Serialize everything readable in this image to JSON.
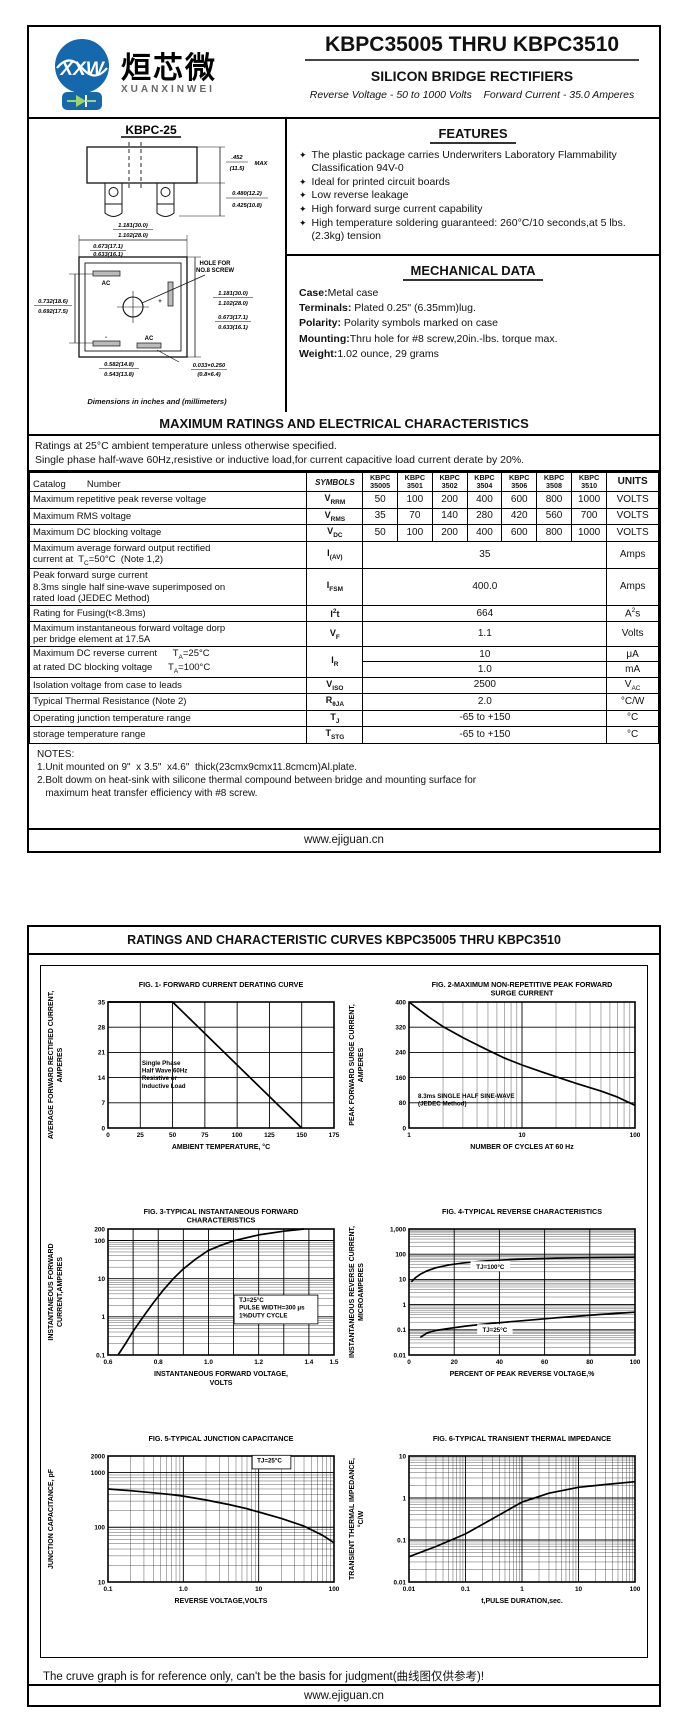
{
  "page1": {
    "brand": {
      "logo_text": "XXW",
      "cn": "烜芯微",
      "en": "XUANXINWEI"
    },
    "title": "KBPC35005 THRU KBPC3510",
    "subtitle": "SILICON BRIDGE RECTIFIERS",
    "tagline": "Reverse Voltage - 50 to 1000 Volts    Forward Current - 35.0 Amperes",
    "package": {
      "name": "KBPC-25",
      "caption": "Dimensions in inches and (millimeters)",
      "hole_note_1": "HOLE FOR",
      "hole_note_2": "NO.8 SCREW",
      "terminals": {
        "ac1": "AC",
        "plus": "+",
        "minus": "-",
        "ac2": "AC"
      },
      "dims": {
        "side_h_top": ".452",
        "side_h_bot": "(11.5)",
        "side_h_suffix": "MAX",
        "lead_top": "0.480(12.2)",
        "lead_bot": "0.425(10.8)",
        "width_top": "1.181(30.0)",
        "width_bot": "1.102(28.0)",
        "inner_top": "0.673(17.1)",
        "inner_bot": "0.633(16.1)",
        "left_top": "0.732(18.6)",
        "left_bot": "0.692(17.5)",
        "right1_top": "1.181(30.0)",
        "right1_bot": "1.102(28.0)",
        "right2_top": "0.673(17.1)",
        "right2_bot": "0.633(16.1)",
        "bottom_top": "0.582(14.8)",
        "bottom_bot": "0.543(13.8)",
        "slot_top": "0.033×0.250",
        "slot_bot": "(0.8×6.4)"
      }
    },
    "features": {
      "heading": "FEATURES",
      "items": [
        "The plastic package carries Underwriters Laboratory Flammability Classification 94V-0",
        "Ideal for printed circuit boards",
        "Low reverse leakage",
        "High forward surge current capability",
        "High temperature soldering guaranteed: 260°C/10 seconds,at 5 lbs. (2.3kg) tension"
      ]
    },
    "mechanical": {
      "heading": "MECHANICAL DATA",
      "items": [
        {
          "label": "Case:",
          "text": "Metal case"
        },
        {
          "label": "Terminals:",
          "text": " Plated 0.25\"  (6.35mm)lug."
        },
        {
          "label": "Polarity:",
          "text": " Polarity symbols marked on case"
        },
        {
          "label": "Mounting:",
          "text": "Thru hole for #8 screw,20in.-lbs. torque max."
        },
        {
          "label": "Weight:",
          "text": "1.02 ounce, 29 grams"
        }
      ]
    },
    "ratings": {
      "heading": "MAXIMUM RATINGS AND ELECTRICAL CHARACTERISTICS",
      "line1": "Ratings at 25°C ambient temperature unless otherwise specified.",
      "line2": "Single phase half-wave 60Hz,resistive or inductive load,for current capacitive load current derate by 20%."
    },
    "table": {
      "catalog_label": "Catalog        Number",
      "symbols_header": "SYMBOLS",
      "parts": [
        [
          "KBPC",
          "35005"
        ],
        [
          "KBPC",
          "3501"
        ],
        [
          "KBPC",
          "3502"
        ],
        [
          "KBPC",
          "3504"
        ],
        [
          "KBPC",
          "3506"
        ],
        [
          "KBPC",
          "3508"
        ],
        [
          "KBPC",
          "3510"
        ]
      ],
      "units_header": "UNITS",
      "rows": [
        {
          "label": [
            "Maximum repetitive peak reverse voltage"
          ],
          "sym": "V_{RRM}",
          "values": [
            "50",
            "100",
            "200",
            "400",
            "600",
            "800",
            "1000"
          ],
          "unit": "VOLTS"
        },
        {
          "label": [
            "Maximum RMS voltage"
          ],
          "sym": "V_{RMS}",
          "values": [
            "35",
            "70",
            "140",
            "280",
            "420",
            "560",
            "700"
          ],
          "unit": "VOLTS"
        },
        {
          "label": [
            "Maximum DC blocking voltage"
          ],
          "sym": "V_{DC}",
          "values": [
            "50",
            "100",
            "200",
            "400",
            "600",
            "800",
            "1000"
          ],
          "unit": "VOLTS"
        },
        {
          "label": [
            "Maximum average forward output rectified",
            "current at  T_{C}=50°C  (Note 1,2)"
          ],
          "sym": "I_{(AV)}",
          "span": "35",
          "unit": "Amps"
        },
        {
          "label": [
            "Peak forward surge current",
            "8.3ms single half sine-wave superimposed on",
            "rated load (JEDEC Method)"
          ],
          "sym": "I_{FSM}",
          "span": "400.0",
          "unit": "Amps"
        },
        {
          "label": [
            "Rating for Fusing(t<8.3ms)"
          ],
          "sym": "I^{2}t",
          "span": "664",
          "unit": "A^{2}s"
        },
        {
          "label": [
            "Maximum instantaneous forward voltage dorp",
            "per bridge element at 17.5A"
          ],
          "sym": "V_{F}",
          "span": "1.1",
          "unit": "Volts"
        },
        {
          "dual": true,
          "label": [
            "Maximum DC reverse current      T_{A}=25°C",
            "at rated DC blocking voltage      T_{A}=100°C"
          ],
          "sym": "I_{R}",
          "spans": [
            "10",
            "1.0"
          ],
          "units": [
            "μA",
            "mA"
          ]
        },
        {
          "label": [
            "Isolation voltage from case to leads"
          ],
          "sym": "V_{ISO}",
          "span": "2500",
          "unit": "V_{AC}"
        },
        {
          "label": [
            "Typical Thermal Resistance (Note 2)"
          ],
          "sym": "R_{θJA}",
          "span": "2.0",
          "unit": "°C/W"
        },
        {
          "label": [
            "Operating junction temperature range"
          ],
          "sym": "T_{J}",
          "span": "-65 to +150",
          "unit": "°C"
        },
        {
          "label": [
            "storage temperature range"
          ],
          "sym": "T_{STG}",
          "span": "-65 to +150",
          "unit": "°C"
        }
      ]
    },
    "notes": [
      "NOTES:",
      "1.Unit mounted on 9\"  x 3.5\"  x4.6\"  thick(23cmx9cmx11.8cmcm)Al.plate.",
      "2.Bolt dowm on heat-sink with silicone thermal compound between bridge and mounting surface for",
      "   maximum heat transfer efficiency with #8 screw."
    ],
    "footer": "www.ejiguan.cn"
  },
  "page2": {
    "title": "RATINGS AND CHARACTERISTIC CURVES KBPC35005 THRU KBPC3510",
    "note": "The cruve graph is for reference only, can't be the basis for judgment(曲线图仅供参考)!",
    "footer": "www.ejiguan.cn"
  },
  "chart_data": [
    {
      "type": "line",
      "title": [
        "FIG. 1- FORWARD CURRENT DERATING CURVE"
      ],
      "xlabel": [
        "AMBIENT TEMPERATURE, °C"
      ],
      "ylabel": [
        "AVERAGE FORWARD RECTIFIED CURRENT,",
        "AMPERES"
      ],
      "x": {
        "scale": "linear",
        "min": 0,
        "max": 175,
        "ticks": [
          0,
          25,
          50,
          75,
          100,
          125,
          150,
          175
        ],
        "grid_step": 25
      },
      "y": {
        "scale": "linear",
        "min": 0,
        "max": 35,
        "ticks": [
          0,
          7,
          14,
          21,
          28,
          35
        ],
        "grid_step": 7
      },
      "series": [
        {
          "name": "forward-current-derating",
          "points": [
            [
              0,
              35
            ],
            [
              50,
              35
            ],
            [
              150,
              0
            ]
          ]
        }
      ],
      "annotation": {
        "lines": [
          "Single Phase",
          "Half Wave 60Hz",
          "Resistive or",
          "Inductive Load"
        ],
        "fx": 0.15,
        "fy": 0.5,
        "boxed": false
      }
    },
    {
      "type": "line",
      "title": [
        "FIG. 2-MAXIMUM NON-REPETITIVE PEAK FORWARD",
        "SURGE CURRENT"
      ],
      "xlabel": [
        "NUMBER OF CYCLES AT 60 Hz"
      ],
      "ylabel": [
        "PEAK  FORWARD SURGE CURRENT,",
        "AMPERES"
      ],
      "x": {
        "scale": "log",
        "min": 1,
        "max": 100,
        "ticks": [
          1,
          10,
          100
        ],
        "tick_labels": [
          "1",
          "10",
          "100"
        ]
      },
      "y": {
        "scale": "linear",
        "min": 0,
        "max": 400,
        "ticks": [
          0,
          80,
          160,
          240,
          320,
          400
        ],
        "grid_step": 80
      },
      "series": [
        {
          "name": "peak-forward-surge-current",
          "points": [
            [
              1,
              400
            ],
            [
              1.5,
              352
            ],
            [
              2,
              322
            ],
            [
              3,
              287
            ],
            [
              4,
              264
            ],
            [
              5,
              247
            ],
            [
              7,
              222
            ],
            [
              10,
              200
            ],
            [
              15,
              178
            ],
            [
              20,
              163
            ],
            [
              30,
              142
            ],
            [
              50,
              117
            ],
            [
              70,
              98
            ],
            [
              100,
              72
            ]
          ]
        }
      ],
      "annotation": {
        "lines": [
          "8.3ms SINGLE HALF SINE-WAVE",
          "(JEDEC Method)"
        ],
        "fx": 0.04,
        "fy": 0.76,
        "boxed": false
      }
    },
    {
      "type": "line",
      "title": [
        "FIG. 3-TYPICAL INSTANTANEOUS FORWARD",
        "CHARACTERISTICS"
      ],
      "xlabel": [
        "INSTANTANEOUS FORWARD VOLTAGE,",
        "VOLTS"
      ],
      "ylabel": [
        "INSTANTANEOUS FORWARD",
        "CURRENT,AMPERES"
      ],
      "x": {
        "scale": "linear",
        "min": 0.6,
        "max": 1.5,
        "ticks": [
          0.6,
          0.8,
          1.0,
          1.2,
          1.4,
          1.5
        ],
        "tick_labels": [
          "0.6",
          "0.8",
          "1.0",
          "1.2",
          "1.4",
          "1.5"
        ],
        "grid_step": 0.1
      },
      "y": {
        "scale": "log",
        "min": 0.1,
        "max": 200,
        "ticks": [
          0.1,
          1,
          10,
          100,
          200
        ],
        "tick_labels": [
          "0.1",
          "1",
          "10",
          "100",
          "200"
        ]
      },
      "series": [
        {
          "name": "instantaneous-forward-current",
          "points": [
            [
              0.64,
              0.1
            ],
            [
              0.67,
              0.2
            ],
            [
              0.7,
              0.42
            ],
            [
              0.74,
              1.0
            ],
            [
              0.78,
              2.3
            ],
            [
              0.82,
              5
            ],
            [
              0.86,
              10
            ],
            [
              0.9,
              18
            ],
            [
              0.95,
              33
            ],
            [
              1.0,
              55
            ],
            [
              1.05,
              75
            ],
            [
              1.1,
              98
            ],
            [
              1.2,
              140
            ],
            [
              1.3,
              175
            ],
            [
              1.38,
              200
            ]
          ]
        }
      ],
      "annotation": {
        "lines": [
          "TJ=25°C",
          "PULSE WIDTH=300 μs",
          "1%DUTY CYCLE"
        ],
        "fx": 0.58,
        "fy": 0.58,
        "boxed": true
      }
    },
    {
      "type": "line",
      "title": [
        "FIG. 4-TYPICAL REVERSE CHARACTERISTICS"
      ],
      "xlabel": [
        "PERCENT OF PEAK REVERSE VOLTAGE,%"
      ],
      "ylabel": [
        "INSTANTANEOUS REVERSE CURRENT,",
        "MICROAMPERES"
      ],
      "x": {
        "scale": "linear",
        "min": 0,
        "max": 100,
        "ticks": [
          0,
          20,
          40,
          60,
          80,
          100
        ],
        "grid_step": 20
      },
      "y": {
        "scale": "log",
        "min": 0.01,
        "max": 1000,
        "ticks": [
          0.01,
          0.1,
          1,
          10,
          100,
          1000
        ],
        "tick_labels": [
          "0.01",
          "0.1",
          "1",
          "10",
          "100",
          "1,000"
        ]
      },
      "series": [
        {
          "name": "reverse-current-tj-100c",
          "label": "TJ=100°C",
          "label_fx": 0.36,
          "label_fy": 0.3,
          "points": [
            [
              1,
              8
            ],
            [
              3,
              12
            ],
            [
              5,
              16
            ],
            [
              8,
              22
            ],
            [
              12,
              29
            ],
            [
              18,
              38
            ],
            [
              25,
              46
            ],
            [
              35,
              55
            ],
            [
              45,
              61
            ],
            [
              55,
              66
            ],
            [
              65,
              70
            ],
            [
              75,
              72
            ],
            [
              85,
              74
            ],
            [
              100,
              76
            ]
          ]
        },
        {
          "name": "reverse-current-tj-25c",
          "label": "TJ=25°C",
          "label_fx": 0.38,
          "label_fy": 0.8,
          "points": [
            [
              5,
              0.05
            ],
            [
              8,
              0.075
            ],
            [
              12,
              0.095
            ],
            [
              18,
              0.115
            ],
            [
              25,
              0.14
            ],
            [
              35,
              0.175
            ],
            [
              45,
              0.21
            ],
            [
              55,
              0.25
            ],
            [
              65,
              0.3
            ],
            [
              75,
              0.35
            ],
            [
              85,
              0.41
            ],
            [
              100,
              0.5
            ]
          ]
        }
      ]
    },
    {
      "type": "line",
      "title": [
        "FIG. 5-TYPICAL JUNCTION CAPACITANCE"
      ],
      "xlabel": [
        "REVERSE VOLTAGE,VOLTS"
      ],
      "ylabel": [
        "JUNCTION CAPACITANCE, pF"
      ],
      "x": {
        "scale": "log",
        "min": 0.1,
        "max": 100,
        "ticks": [
          0.1,
          1,
          10,
          100
        ],
        "tick_labels": [
          "0.1",
          "1.0",
          "10",
          "100"
        ]
      },
      "y": {
        "scale": "log",
        "min": 10,
        "max": 2000,
        "ticks": [
          10,
          100,
          1000,
          2000
        ],
        "tick_labels": [
          "10",
          "100",
          "1000",
          "2000"
        ]
      },
      "series": [
        {
          "name": "junction-capacitance",
          "points": [
            [
              0.1,
              500
            ],
            [
              0.2,
              465
            ],
            [
              0.4,
              425
            ],
            [
              0.7,
              395
            ],
            [
              1,
              370
            ],
            [
              2,
              315
            ],
            [
              4,
              260
            ],
            [
              7,
              218
            ],
            [
              10,
              190
            ],
            [
              20,
              145
            ],
            [
              40,
              105
            ],
            [
              70,
              72
            ],
            [
              100,
              52
            ]
          ]
        }
      ],
      "annotation": {
        "lines": [
          "TJ=25°C"
        ],
        "fx": 0.66,
        "fy": 0.05,
        "boxed": true
      }
    },
    {
      "type": "line",
      "title": [
        "FIG. 6-TYPICAL TRANSIENT THERMAL IMPEDANCE"
      ],
      "xlabel": [
        "t,PULSE DURATION,sec."
      ],
      "ylabel": [
        "TRANSIENT THERMAL IMPEDANCE,",
        "°C/W"
      ],
      "x": {
        "scale": "log",
        "min": 0.01,
        "max": 100,
        "ticks": [
          0.01,
          0.1,
          1,
          10,
          100
        ],
        "tick_labels": [
          "0.01",
          "0.1",
          "1",
          "10",
          "100"
        ]
      },
      "y": {
        "scale": "log",
        "min": 0.01,
        "max": 10,
        "ticks": [
          0.01,
          0.1,
          1,
          10
        ],
        "tick_labels": [
          "0.01",
          "0.1",
          "1",
          "10"
        ]
      },
      "series": [
        {
          "name": "transient-thermal-impedance",
          "points": [
            [
              0.01,
              0.04
            ],
            [
              0.03,
              0.07
            ],
            [
              0.1,
              0.14
            ],
            [
              0.3,
              0.32
            ],
            [
              1,
              0.8
            ],
            [
              3,
              1.3
            ],
            [
              10,
              1.8
            ],
            [
              30,
              2.1
            ],
            [
              100,
              2.45
            ]
          ]
        }
      ]
    }
  ]
}
